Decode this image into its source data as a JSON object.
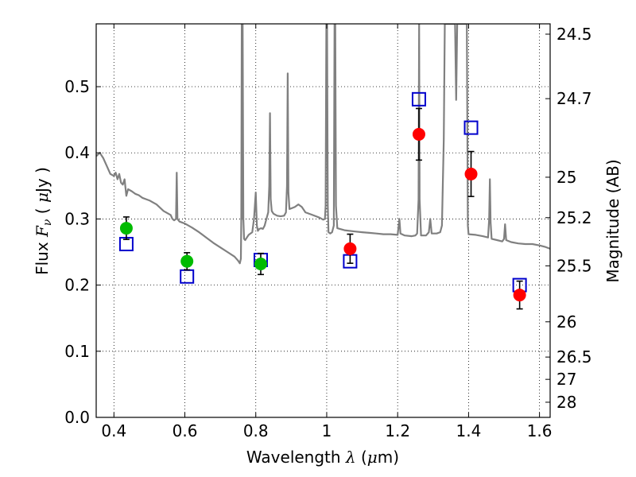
{
  "chart_data": {
    "type": "scatter",
    "title": "",
    "xlabel": "Wavelength  λ (μm)",
    "ylabel": "Flux  Fν  ( μJy )",
    "y2label": "Magnitude (AB)",
    "xlim": [
      0.35,
      1.63
    ],
    "ylim": [
      0.0,
      0.595
    ],
    "grid": true,
    "x_ticks": [
      0.4,
      0.6,
      0.8,
      1.0,
      1.2,
      1.4,
      1.6
    ],
    "x_tick_labels": [
      "0.4",
      "0.6",
      "0.8",
      "1",
      "1.2",
      "1.4",
      "1.6"
    ],
    "y_ticks": [
      0.0,
      0.1,
      0.2,
      0.3,
      0.4,
      0.5
    ],
    "y_tick_labels": [
      "0.0",
      "0.1",
      "0.2",
      "0.3",
      "0.4",
      "0.5"
    ],
    "y2_ticks": [
      {
        "label": "24.5",
        "flux": 0.5794
      },
      {
        "label": "24.7",
        "flux": 0.4819
      },
      {
        "label": "25",
        "flux": 0.3631
      },
      {
        "label": "25.2",
        "flux": 0.302
      },
      {
        "label": "25.5",
        "flux": 0.2291
      },
      {
        "label": "26",
        "flux": 0.1445
      },
      {
        "label": "26.5",
        "flux": 0.0912
      },
      {
        "label": "27",
        "flux": 0.0575
      },
      {
        "label": "28",
        "flux": 0.0229
      }
    ],
    "series": [
      {
        "marker": "circle",
        "color": "#00bb00",
        "points": [
          {
            "x": 0.435,
            "y": 0.286,
            "err": 0.017
          },
          {
            "x": 0.606,
            "y": 0.236,
            "err": 0.013
          },
          {
            "x": 0.814,
            "y": 0.232,
            "err": 0.016
          }
        ]
      },
      {
        "marker": "circle",
        "color": "#ff0000",
        "points": [
          {
            "x": 1.066,
            "y": 0.255,
            "err": 0.022
          },
          {
            "x": 1.26,
            "y": 0.428,
            "err": 0.039
          },
          {
            "x": 1.407,
            "y": 0.368,
            "err": 0.034
          },
          {
            "x": 1.544,
            "y": 0.185,
            "err": 0.021
          }
        ]
      },
      {
        "marker": "open-square",
        "color": "#0000cc",
        "points": [
          {
            "x": 0.435,
            "y": 0.262
          },
          {
            "x": 0.606,
            "y": 0.213
          },
          {
            "x": 0.814,
            "y": 0.238
          },
          {
            "x": 1.066,
            "y": 0.236
          },
          {
            "x": 1.26,
            "y": 0.481
          },
          {
            "x": 1.407,
            "y": 0.438
          },
          {
            "x": 1.544,
            "y": 0.2
          }
        ]
      },
      {
        "type": "line",
        "color": "#808080",
        "points": [
          [
            0.35,
            0.395
          ],
          [
            0.36,
            0.4
          ],
          [
            0.37,
            0.392
          ],
          [
            0.38,
            0.38
          ],
          [
            0.39,
            0.368
          ],
          [
            0.4,
            0.365
          ],
          [
            0.405,
            0.37
          ],
          [
            0.41,
            0.36
          ],
          [
            0.415,
            0.368
          ],
          [
            0.42,
            0.355
          ],
          [
            0.425,
            0.352
          ],
          [
            0.43,
            0.36
          ],
          [
            0.435,
            0.335
          ],
          [
            0.44,
            0.345
          ],
          [
            0.45,
            0.342
          ],
          [
            0.46,
            0.338
          ],
          [
            0.47,
            0.336
          ],
          [
            0.48,
            0.332
          ],
          [
            0.49,
            0.33
          ],
          [
            0.5,
            0.328
          ],
          [
            0.52,
            0.322
          ],
          [
            0.54,
            0.312
          ],
          [
            0.56,
            0.306
          ],
          [
            0.565,
            0.3
          ],
          [
            0.57,
            0.298
          ],
          [
            0.575,
            0.3
          ],
          [
            0.577,
            0.37
          ],
          [
            0.579,
            0.3
          ],
          [
            0.585,
            0.296
          ],
          [
            0.6,
            0.293
          ],
          [
            0.62,
            0.287
          ],
          [
            0.64,
            0.28
          ],
          [
            0.66,
            0.272
          ],
          [
            0.68,
            0.264
          ],
          [
            0.7,
            0.257
          ],
          [
            0.72,
            0.25
          ],
          [
            0.74,
            0.243
          ],
          [
            0.75,
            0.237
          ],
          [
            0.755,
            0.233
          ],
          [
            0.758,
            0.24
          ],
          [
            0.759,
            0.3
          ],
          [
            0.7605,
            0.595
          ],
          [
            0.762,
            0.3
          ],
          [
            0.763,
            0.595
          ],
          [
            0.765,
            0.3
          ],
          [
            0.767,
            0.27
          ],
          [
            0.77,
            0.268
          ],
          [
            0.775,
            0.272
          ],
          [
            0.78,
            0.276
          ],
          [
            0.79,
            0.28
          ],
          [
            0.795,
            0.3
          ],
          [
            0.8,
            0.34
          ],
          [
            0.803,
            0.29
          ],
          [
            0.806,
            0.282
          ],
          [
            0.81,
            0.285
          ],
          [
            0.815,
            0.286
          ],
          [
            0.82,
            0.285
          ],
          [
            0.825,
            0.29
          ],
          [
            0.83,
            0.3
          ],
          [
            0.835,
            0.31
          ],
          [
            0.838,
            0.35
          ],
          [
            0.84,
            0.46
          ],
          [
            0.842,
            0.33
          ],
          [
            0.845,
            0.312
          ],
          [
            0.85,
            0.308
          ],
          [
            0.86,
            0.305
          ],
          [
            0.87,
            0.304
          ],
          [
            0.88,
            0.305
          ],
          [
            0.885,
            0.31
          ],
          [
            0.888,
            0.35
          ],
          [
            0.89,
            0.52
          ],
          [
            0.892,
            0.34
          ],
          [
            0.895,
            0.315
          ],
          [
            0.9,
            0.316
          ],
          [
            0.91,
            0.318
          ],
          [
            0.92,
            0.322
          ],
          [
            0.93,
            0.318
          ],
          [
            0.94,
            0.31
          ],
          [
            0.96,
            0.306
          ],
          [
            0.98,
            0.302
          ],
          [
            0.99,
            0.299
          ],
          [
            0.995,
            0.3
          ],
          [
            0.997,
            0.32
          ],
          [
            0.999,
            0.595
          ],
          [
            1.001,
            0.595
          ],
          [
            1.003,
            0.32
          ],
          [
            1.005,
            0.28
          ],
          [
            1.01,
            0.278
          ],
          [
            1.015,
            0.28
          ],
          [
            1.02,
            0.29
          ],
          [
            1.022,
            0.595
          ],
          [
            1.024,
            0.595
          ],
          [
            1.026,
            0.32
          ],
          [
            1.03,
            0.286
          ],
          [
            1.05,
            0.283
          ],
          [
            1.08,
            0.281
          ],
          [
            1.1,
            0.28
          ],
          [
            1.12,
            0.279
          ],
          [
            1.14,
            0.278
          ],
          [
            1.16,
            0.277
          ],
          [
            1.18,
            0.277
          ],
          [
            1.2,
            0.276
          ],
          [
            1.205,
            0.3
          ],
          [
            1.208,
            0.278
          ],
          [
            1.22,
            0.275
          ],
          [
            1.24,
            0.274
          ],
          [
            1.25,
            0.275
          ],
          [
            1.255,
            0.278
          ],
          [
            1.259,
            0.33
          ],
          [
            1.2605,
            0.595
          ],
          [
            1.262,
            0.33
          ],
          [
            1.266,
            0.275
          ],
          [
            1.28,
            0.275
          ],
          [
            1.288,
            0.28
          ],
          [
            1.292,
            0.3
          ],
          [
            1.296,
            0.278
          ],
          [
            1.31,
            0.278
          ],
          [
            1.32,
            0.28
          ],
          [
            1.325,
            0.29
          ],
          [
            1.33,
            0.42
          ],
          [
            1.333,
            0.595
          ],
          [
            1.362,
            0.595
          ],
          [
            1.365,
            0.48
          ],
          [
            1.368,
            0.595
          ],
          [
            1.395,
            0.595
          ],
          [
            1.398,
            0.29
          ],
          [
            1.4,
            0.277
          ],
          [
            1.42,
            0.276
          ],
          [
            1.44,
            0.274
          ],
          [
            1.455,
            0.272
          ],
          [
            1.458,
            0.3
          ],
          [
            1.46,
            0.36
          ],
          [
            1.462,
            0.295
          ],
          [
            1.465,
            0.27
          ],
          [
            1.48,
            0.268
          ],
          [
            1.495,
            0.266
          ],
          [
            1.5,
            0.27
          ],
          [
            1.503,
            0.292
          ],
          [
            1.506,
            0.268
          ],
          [
            1.52,
            0.265
          ],
          [
            1.54,
            0.263
          ],
          [
            1.56,
            0.262
          ],
          [
            1.58,
            0.262
          ],
          [
            1.6,
            0.26
          ],
          [
            1.615,
            0.258
          ],
          [
            1.63,
            0.255
          ]
        ]
      }
    ]
  }
}
